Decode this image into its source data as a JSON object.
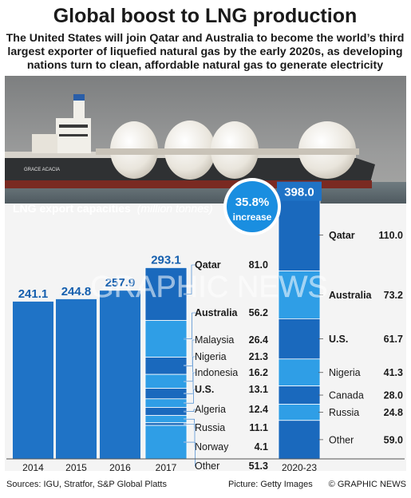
{
  "header": {
    "title": "Global boost to LNG production",
    "subtitle_lines": [
      "The United States will join Qatar and Australia to become the world’s third",
      "largest exporter of liquefied natural gas by the early 2020s, as developing",
      "nations turn to clean, affordable natural gas to generate electricity"
    ]
  },
  "badge": {
    "value": "35.8%",
    "label": "increase"
  },
  "watermark": "GRAPHIC NEWS",
  "footer": {
    "sources": "Sources: IGU, Stratfor, S&P Global Platts",
    "picture": "Picture: Getty Images",
    "credit": "© GRAPHIC NEWS"
  },
  "colors": {
    "title": "#1a1a1a",
    "bar": "#1f73c6",
    "stack_dark": "#1a69bd",
    "stack_light": "#2f9ee6",
    "bar_label": "#155fae",
    "photo_sky": "#8d8e8e",
    "chart_bg": "#f4f4f4",
    "badge": "#1a8ee0"
  },
  "chart_data": {
    "type": "bar",
    "title": "LNG export capacities",
    "title_unit": "(million tonnes)",
    "ylim": [
      0,
      410
    ],
    "categories": [
      "2014",
      "2015",
      "2016",
      "2017",
      "2020-23"
    ],
    "totals": [
      241.1,
      244.8,
      257.9,
      293.1,
      398.0
    ],
    "total_labels": [
      "241.1",
      "244.8",
      "257.9",
      "293.1",
      "398.0"
    ],
    "stacks": [
      {
        "category": "2017",
        "segments": [
          {
            "name": "Qatar",
            "value": 81.0,
            "value_label": "81.0"
          },
          {
            "name": "Australia",
            "value": 56.2,
            "value_label": "56.2"
          },
          {
            "name": "Malaysia",
            "value": 26.4,
            "value_label": "26.4"
          },
          {
            "name": "Nigeria",
            "value": 21.3,
            "value_label": "21.3"
          },
          {
            "name": "Indonesia",
            "value": 16.2,
            "value_label": "16.2"
          },
          {
            "name": "U.S.",
            "value": 13.1,
            "value_label": "13.1"
          },
          {
            "name": "Algeria",
            "value": 12.4,
            "value_label": "12.4"
          },
          {
            "name": "Russia",
            "value": 11.1,
            "value_label": "11.1"
          },
          {
            "name": "Norway",
            "value": 4.1,
            "value_label": "4.1"
          },
          {
            "name": "Other",
            "value": 51.3,
            "value_label": "51.3"
          }
        ]
      },
      {
        "category": "2020-23",
        "segments": [
          {
            "name": "Qatar",
            "value": 110.0,
            "value_label": "110.0"
          },
          {
            "name": "Australia",
            "value": 73.2,
            "value_label": "73.2"
          },
          {
            "name": "U.S.",
            "value": 61.7,
            "value_label": "61.7"
          },
          {
            "name": "Nigeria",
            "value": 41.3,
            "value_label": "41.3"
          },
          {
            "name": "Canada",
            "value": 28.0,
            "value_label": "28.0"
          },
          {
            "name": "Russia",
            "value": 24.8,
            "value_label": "24.8"
          },
          {
            "name": "Other",
            "value": 59.0,
            "value_label": "59.0"
          }
        ]
      }
    ],
    "bold_names": [
      "Qatar",
      "Australia",
      "U.S."
    ]
  }
}
